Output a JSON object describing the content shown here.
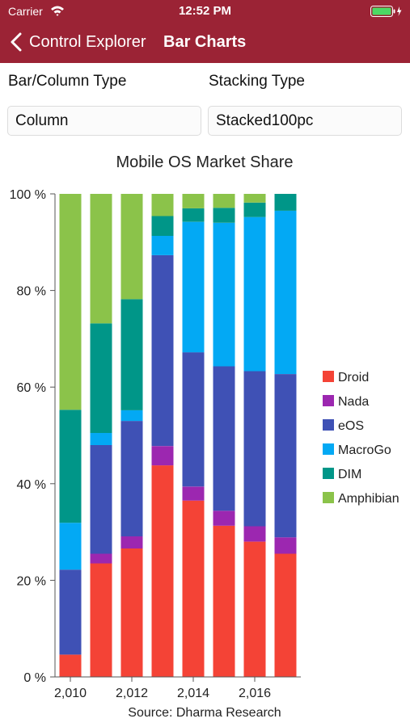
{
  "status_bar": {
    "carrier": "Carrier",
    "time": "12:52 PM"
  },
  "nav": {
    "back_label": "Control Explorer",
    "title": "Bar Charts"
  },
  "controls": {
    "bar_type_label": "Bar/Column Type",
    "bar_type_value": "Column",
    "stacking_label": "Stacking Type",
    "stacking_value": "Stacked100pc"
  },
  "colors": {
    "nav_background": "#9b2335",
    "Droid": "#f44336",
    "Nada": "#9c27b0",
    "eOS": "#3f51b5",
    "MacroGo": "#03a9f4",
    "DIM": "#009688",
    "Amphibian": "#8bc34a"
  },
  "chart_data": {
    "type": "bar",
    "stacking": "Stacked100pc",
    "title": "Mobile OS Market Share",
    "footer": "Source: Dharma Research",
    "x": [
      2010,
      2011,
      2012,
      2013,
      2014,
      2015,
      2016,
      2017
    ],
    "xticks": [
      "2,010",
      "2,012",
      "2,014",
      "2,016"
    ],
    "yticks": [
      "0 %",
      "20 %",
      "40 %",
      "60 %",
      "80 %",
      "100 %"
    ],
    "ylim": [
      0,
      100
    ],
    "legend_position": "right",
    "series": [
      {
        "name": "Droid",
        "values": [
          4.6,
          23.5,
          26.6,
          43.8,
          36.5,
          31.3,
          28.0,
          25.5
        ]
      },
      {
        "name": "Nada",
        "values": [
          0,
          2.0,
          2.5,
          4.0,
          2.9,
          3.1,
          3.2,
          3.4
        ]
      },
      {
        "name": "eOS",
        "values": [
          17.6,
          22.5,
          23.9,
          39.5,
          27.8,
          29.9,
          32.1,
          33.8
        ]
      },
      {
        "name": "MacroGo",
        "values": [
          9.7,
          2.5,
          2.2,
          4.0,
          27.0,
          29.7,
          31.9,
          33.8
        ]
      },
      {
        "name": "DIM",
        "values": [
          23.4,
          22.7,
          23.0,
          4.1,
          2.8,
          3.1,
          3.0,
          3.5
        ]
      },
      {
        "name": "Amphibian",
        "values": [
          44.7,
          26.8,
          21.8,
          4.6,
          3.0,
          2.9,
          1.8,
          0
        ]
      }
    ]
  }
}
